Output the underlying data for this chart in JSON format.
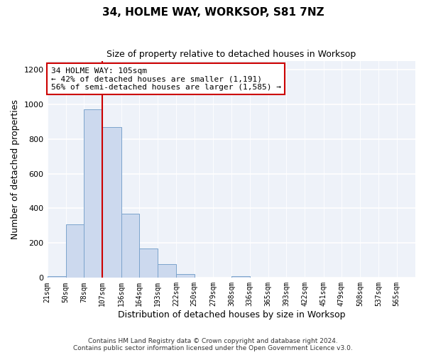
{
  "title": "34, HOLME WAY, WORKSOP, S81 7NZ",
  "subtitle": "Size of property relative to detached houses in Worksop",
  "xlabel": "Distribution of detached houses by size in Worksop",
  "ylabel": "Number of detached properties",
  "bar_color": "#ccd9ee",
  "bar_edge_color": "#7ba3cc",
  "background_color": "#eef2f9",
  "annotation_box_edge_color": "#cc0000",
  "red_line_color": "#cc0000",
  "annotation_title": "34 HOLME WAY: 105sqm",
  "annotation_line1": "← 42% of detached houses are smaller (1,191)",
  "annotation_line2": "56% of semi-detached houses are larger (1,585) →",
  "bin_edges": [
    21,
    50,
    78,
    107,
    136,
    164,
    193,
    222,
    250,
    279,
    308,
    336,
    365,
    393,
    422,
    451,
    479,
    508,
    537,
    565,
    594
  ],
  "bin_counts": [
    10,
    310,
    970,
    870,
    370,
    170,
    80,
    20,
    0,
    0,
    10,
    0,
    0,
    0,
    0,
    0,
    0,
    0,
    0,
    0
  ],
  "red_line_x": 107,
  "ylim": [
    0,
    1250
  ],
  "yticks": [
    0,
    200,
    400,
    600,
    800,
    1000,
    1200
  ],
  "footer_line1": "Contains HM Land Registry data © Crown copyright and database right 2024.",
  "footer_line2": "Contains public sector information licensed under the Open Government Licence v3.0."
}
